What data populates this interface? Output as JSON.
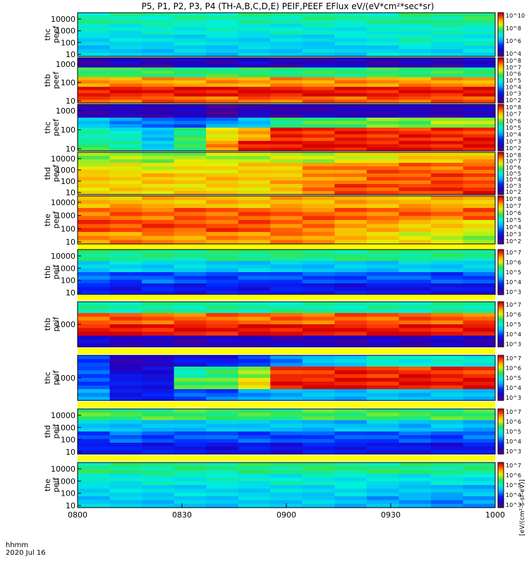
{
  "title": "P5, P1, P2, P3, P4 (TH-A,B,C,D,E) PEIF,PEEF EFlux eV/(eV*cm²*sec*sr)",
  "footer": {
    "time_label": "hhmm",
    "date_label": "2020 Jul 16"
  },
  "x_ticks": [
    "0800",
    "0830",
    "0900",
    "0930",
    "1000"
  ],
  "unit_label": "[eV/(cm²-s-sr-eV)]",
  "colors": {
    "background": "#ffffff",
    "separator": "#ffff00",
    "frame": "#000000"
  },
  "colormap": "rainbow (purple → blue → cyan → green → yellow → orange → red)",
  "chart_data": [
    {
      "type": "heatmap",
      "probe": "thc",
      "species": "peef",
      "ylabel": [
        "thc",
        "peef"
      ],
      "y_ticks": [
        "10",
        "100",
        "1000",
        "10000"
      ],
      "y_scale": "log",
      "colorbar_ticks": [
        "10^4",
        "10^6",
        "10^8",
        "10^10"
      ],
      "time_bins": 13,
      "energy_bins": 12,
      "level_rows": [
        [
          0.55,
          0.55,
          0.55,
          0.55,
          0.55,
          0.55,
          0.55,
          0.55,
          0.55,
          0.55,
          0.58,
          0.58,
          0.6
        ],
        [
          0.5,
          0.5,
          0.5,
          0.5,
          0.5,
          0.5,
          0.5,
          0.5,
          0.5,
          0.5,
          0.52,
          0.52,
          0.52
        ],
        [
          0.45,
          0.45,
          0.46,
          0.46,
          0.45,
          0.45,
          0.45,
          0.45,
          0.45,
          0.5,
          0.52,
          0.5,
          0.5
        ],
        [
          0.42,
          0.42,
          0.42,
          0.43,
          0.42,
          0.42,
          0.42,
          0.42,
          0.42,
          0.45,
          0.45,
          0.45,
          0.45
        ]
      ]
    },
    {
      "type": "heatmap",
      "probe": "thb",
      "species": "peef",
      "ylabel": [
        "thb",
        "peef"
      ],
      "y_ticks": [
        "10",
        "100",
        "1000"
      ],
      "y_scale": "log",
      "colorbar_ticks": [
        "10^2",
        "10^3",
        "10^4",
        "10^5",
        "10^6",
        "10^7",
        "10^8"
      ],
      "time_bins": 13,
      "energy_bins": 14,
      "level_rows": [
        [
          0.1,
          0.12,
          0.1,
          0.11,
          0.1,
          0.12,
          0.1,
          0.11,
          0.12,
          0.1,
          0.11,
          0.1,
          0.12
        ],
        [
          0.6,
          0.62,
          0.6,
          0.6,
          0.6,
          0.6,
          0.6,
          0.6,
          0.6,
          0.6,
          0.6,
          0.6,
          0.6
        ],
        [
          0.85,
          0.85,
          0.85,
          0.85,
          0.85,
          0.85,
          0.85,
          0.85,
          0.85,
          0.85,
          0.85,
          0.85,
          0.85
        ],
        [
          0.98,
          0.98,
          0.98,
          0.98,
          0.98,
          0.98,
          0.98,
          0.98,
          0.98,
          0.98,
          0.98,
          0.98,
          0.98
        ],
        [
          0.9,
          0.9,
          0.9,
          0.9,
          0.9,
          0.9,
          0.9,
          0.9,
          0.9,
          0.9,
          0.9,
          0.9,
          0.9
        ]
      ]
    },
    {
      "type": "heatmap",
      "probe": "thc",
      "species": "peef",
      "ylabel": [
        "thc",
        "peef"
      ],
      "y_ticks": [
        "10",
        "100",
        "1000"
      ],
      "y_scale": "log",
      "colorbar_ticks": [
        "10^2",
        "10^3",
        "10^4",
        "10^5",
        "10^6",
        "10^7",
        "10^8"
      ],
      "time_bins": 13,
      "energy_bins": 14,
      "level_rows": [
        [
          0.1,
          0.1,
          0.1,
          0.1,
          0.05,
          0.1,
          0.08,
          0.1,
          0.1,
          0.12,
          0.1,
          0.1,
          0.1
        ],
        [
          0.4,
          0.35,
          0.3,
          0.3,
          0.35,
          0.4,
          0.6,
          0.62,
          0.65,
          0.65,
          0.65,
          0.68,
          0.7
        ],
        [
          0.55,
          0.5,
          0.4,
          0.6,
          0.75,
          0.85,
          0.95,
          0.95,
          0.95,
          0.95,
          0.95,
          0.95,
          0.95
        ],
        [
          0.6,
          0.55,
          0.45,
          0.6,
          0.88,
          0.95,
          0.98,
          0.98,
          0.98,
          0.98,
          0.98,
          0.98,
          0.98
        ]
      ]
    },
    {
      "type": "heatmap",
      "probe": "thd",
      "species": "peef",
      "ylabel": [
        "thd",
        "peef"
      ],
      "y_ticks": [
        "10",
        "100",
        "1000",
        "10000"
      ],
      "y_scale": "log",
      "colorbar_ticks": [
        "10^2",
        "10^3",
        "10^4",
        "10^5",
        "10^6",
        "10^7",
        "10^8"
      ],
      "time_bins": 13,
      "energy_bins": 12,
      "level_rows": [
        [
          0.68,
          0.68,
          0.68,
          0.7,
          0.7,
          0.72,
          0.72,
          0.72,
          0.72,
          0.75,
          0.78,
          0.8,
          0.82
        ],
        [
          0.75,
          0.75,
          0.75,
          0.76,
          0.78,
          0.78,
          0.8,
          0.85,
          0.88,
          0.9,
          0.9,
          0.9,
          0.9
        ],
        [
          0.8,
          0.8,
          0.8,
          0.8,
          0.8,
          0.8,
          0.82,
          0.85,
          0.88,
          0.9,
          0.92,
          0.92,
          0.92
        ],
        [
          0.78,
          0.78,
          0.78,
          0.78,
          0.78,
          0.78,
          0.8,
          0.9,
          0.92,
          0.92,
          0.92,
          0.95,
          0.95
        ]
      ]
    },
    {
      "type": "heatmap",
      "probe": "the",
      "species": "peef",
      "ylabel": [
        "the",
        "peef"
      ],
      "y_ticks": [
        "10",
        "100",
        "1000",
        "10000"
      ],
      "y_scale": "log",
      "colorbar_ticks": [
        "10^2",
        "10^3",
        "10^4",
        "10^5",
        "10^6",
        "10^7",
        "10^8"
      ],
      "time_bins": 13,
      "energy_bins": 12,
      "level_rows": [
        [
          0.82,
          0.82,
          0.82,
          0.82,
          0.82,
          0.82,
          0.82,
          0.82,
          0.82,
          0.82,
          0.82,
          0.82,
          0.82
        ],
        [
          0.9,
          0.9,
          0.9,
          0.9,
          0.9,
          0.9,
          0.9,
          0.9,
          0.9,
          0.9,
          0.9,
          0.9,
          0.9
        ],
        [
          0.92,
          0.92,
          0.92,
          0.92,
          0.92,
          0.92,
          0.9,
          0.88,
          0.85,
          0.82,
          0.8,
          0.78,
          0.76
        ],
        [
          0.86,
          0.86,
          0.86,
          0.86,
          0.86,
          0.86,
          0.86,
          0.86,
          0.8,
          0.78,
          0.75,
          0.72,
          0.7
        ]
      ]
    },
    {
      "type": "heatmap",
      "probe": "thb",
      "species": "peif",
      "ylabel": [
        "thb",
        "peif"
      ],
      "y_ticks": [
        "10",
        "100",
        "1000",
        "10000"
      ],
      "y_scale": "log",
      "colorbar_ticks": [
        "10^3",
        "10^4",
        "10^5",
        "10^6",
        "10^7"
      ],
      "time_bins": 13,
      "energy_bins": 12,
      "level_rows": [
        [
          0.58,
          0.58,
          0.58,
          0.58,
          0.58,
          0.58,
          0.58,
          0.58,
          0.58,
          0.58,
          0.58,
          0.58,
          0.58
        ],
        [
          0.45,
          0.44,
          0.43,
          0.44,
          0.42,
          0.43,
          0.42,
          0.42,
          0.42,
          0.42,
          0.42,
          0.42,
          0.42
        ],
        [
          0.3,
          0.28,
          0.3,
          0.28,
          0.27,
          0.28,
          0.3,
          0.27,
          0.28,
          0.28,
          0.3,
          0.27,
          0.28
        ],
        [
          0.22,
          0.2,
          0.22,
          0.2,
          0.2,
          0.18,
          0.2,
          0.2,
          0.18,
          0.18,
          0.2,
          0.18,
          0.2
        ]
      ]
    },
    {
      "type": "heatmap",
      "probe": "thb",
      "species": "peif",
      "ylabel": [
        "thb",
        "peif"
      ],
      "y_ticks": [
        "1000"
      ],
      "y_scale": "log",
      "colorbar_ticks": [
        "10^3",
        "10^4",
        "10^5",
        "10^6",
        "10^7"
      ],
      "time_bins": 13,
      "energy_bins": 12,
      "level_rows": [
        [
          0.55,
          0.55,
          0.55,
          0.55,
          0.55,
          0.55,
          0.55,
          0.55,
          0.55,
          0.55,
          0.55,
          0.55,
          0.55
        ],
        [
          0.9,
          0.9,
          0.9,
          0.9,
          0.9,
          0.9,
          0.9,
          0.9,
          0.9,
          0.9,
          0.9,
          0.9,
          0.9
        ],
        [
          0.98,
          0.98,
          0.98,
          0.98,
          0.98,
          0.98,
          0.98,
          0.98,
          0.98,
          0.98,
          0.98,
          0.98,
          0.98
        ],
        [
          0.15,
          0.12,
          0.1,
          0.08,
          0.1,
          0.12,
          0.1,
          0.1,
          0.1,
          0.12,
          0.1,
          0.12,
          0.1
        ]
      ]
    },
    {
      "type": "heatmap",
      "probe": "thc",
      "species": "peif",
      "ylabel": [
        "thc",
        "peif"
      ],
      "y_ticks": [
        "1000"
      ],
      "y_scale": "log",
      "colorbar_ticks": [
        "10^3",
        "10^4",
        "10^5",
        "10^6",
        "10^7"
      ],
      "time_bins": 13,
      "energy_bins": 12,
      "level_rows": [
        [
          0.25,
          0.1,
          0.1,
          0.2,
          0.2,
          0.25,
          0.35,
          0.4,
          0.45,
          0.5,
          0.5,
          0.5,
          0.5
        ],
        [
          0.3,
          0.15,
          0.15,
          0.55,
          0.6,
          0.7,
          0.92,
          0.95,
          0.95,
          0.95,
          0.95,
          0.95,
          0.95
        ],
        [
          0.3,
          0.2,
          0.2,
          0.62,
          0.65,
          0.75,
          0.98,
          0.98,
          0.98,
          0.98,
          0.98,
          0.98,
          0.98
        ],
        [
          0.35,
          0.2,
          0.2,
          0.3,
          0.3,
          0.35,
          0.4,
          0.4,
          0.4,
          0.4,
          0.4,
          0.4,
          0.4
        ]
      ]
    },
    {
      "type": "heatmap",
      "probe": "thd",
      "species": "peif",
      "ylabel": [
        "thd",
        "peif"
      ],
      "y_ticks": [
        "10",
        "100",
        "1000",
        "10000"
      ],
      "y_scale": "log",
      "colorbar_ticks": [
        "10^3",
        "10^4",
        "10^5",
        "10^6",
        "10^7"
      ],
      "time_bins": 13,
      "energy_bins": 12,
      "level_rows": [
        [
          0.62,
          0.62,
          0.62,
          0.62,
          0.62,
          0.62,
          0.62,
          0.62,
          0.62,
          0.62,
          0.62,
          0.62,
          0.62
        ],
        [
          0.42,
          0.42,
          0.4,
          0.42,
          0.4,
          0.42,
          0.4,
          0.4,
          0.4,
          0.42,
          0.4,
          0.42,
          0.4
        ],
        [
          0.28,
          0.3,
          0.28,
          0.27,
          0.3,
          0.28,
          0.27,
          0.3,
          0.28,
          0.3,
          0.28,
          0.27,
          0.3
        ],
        [
          0.2,
          0.22,
          0.2,
          0.2,
          0.18,
          0.2,
          0.18,
          0.2,
          0.2,
          0.18,
          0.2,
          0.18,
          0.2
        ]
      ]
    },
    {
      "type": "heatmap",
      "probe": "the",
      "species": "peif",
      "ylabel": [
        "the",
        "peif"
      ],
      "y_ticks": [
        "10",
        "100",
        "1000",
        "10000"
      ],
      "y_scale": "log",
      "colorbar_ticks": [
        "10^3",
        "10^4",
        "10^5",
        "10^6",
        "10^7"
      ],
      "time_bins": 13,
      "energy_bins": 12,
      "level_rows": [
        [
          0.58,
          0.58,
          0.58,
          0.58,
          0.58,
          0.58,
          0.58,
          0.58,
          0.58,
          0.58,
          0.58,
          0.58,
          0.58
        ],
        [
          0.5,
          0.5,
          0.5,
          0.5,
          0.5,
          0.5,
          0.5,
          0.5,
          0.5,
          0.48,
          0.48,
          0.48,
          0.48
        ],
        [
          0.45,
          0.45,
          0.45,
          0.45,
          0.45,
          0.45,
          0.45,
          0.45,
          0.45,
          0.42,
          0.4,
          0.4,
          0.4
        ],
        [
          0.42,
          0.42,
          0.42,
          0.42,
          0.42,
          0.42,
          0.42,
          0.42,
          0.4,
          0.38,
          0.36,
          0.35,
          0.35
        ]
      ]
    }
  ]
}
